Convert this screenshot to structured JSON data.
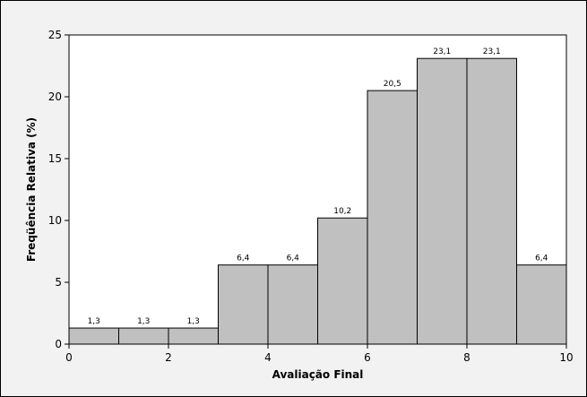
{
  "chart_data": {
    "type": "bar",
    "subtype": "histogram",
    "bins": [
      {
        "start": 0,
        "end": 1,
        "value": 1.3,
        "label": "1,3"
      },
      {
        "start": 1,
        "end": 2,
        "value": 1.3,
        "label": "1,3"
      },
      {
        "start": 2,
        "end": 3,
        "value": 1.3,
        "label": "1,3"
      },
      {
        "start": 3,
        "end": 4,
        "value": 6.4,
        "label": "6,4"
      },
      {
        "start": 4,
        "end": 5,
        "value": 6.4,
        "label": "6,4"
      },
      {
        "start": 5,
        "end": 6,
        "value": 10.2,
        "label": "10,2"
      },
      {
        "start": 6,
        "end": 7,
        "value": 20.5,
        "label": "20,5"
      },
      {
        "start": 7,
        "end": 8,
        "value": 23.1,
        "label": "23,1"
      },
      {
        "start": 8,
        "end": 9,
        "value": 23.1,
        "label": "23,1"
      },
      {
        "start": 9,
        "end": 10,
        "value": 6.4,
        "label": "6,4"
      }
    ],
    "xlabel": "Avaliação Final",
    "ylabel": "Freqüência Relativa (%)",
    "xlim": [
      0,
      10
    ],
    "ylim": [
      0,
      25
    ],
    "xticks": [
      0,
      2,
      4,
      6,
      8,
      10
    ],
    "yticks": [
      0,
      5,
      10,
      15,
      20,
      25
    ],
    "grid": false,
    "bar_color": "#c0c0c0",
    "plot_background": "#ffffff",
    "figure_background": "#f2f2f2"
  }
}
